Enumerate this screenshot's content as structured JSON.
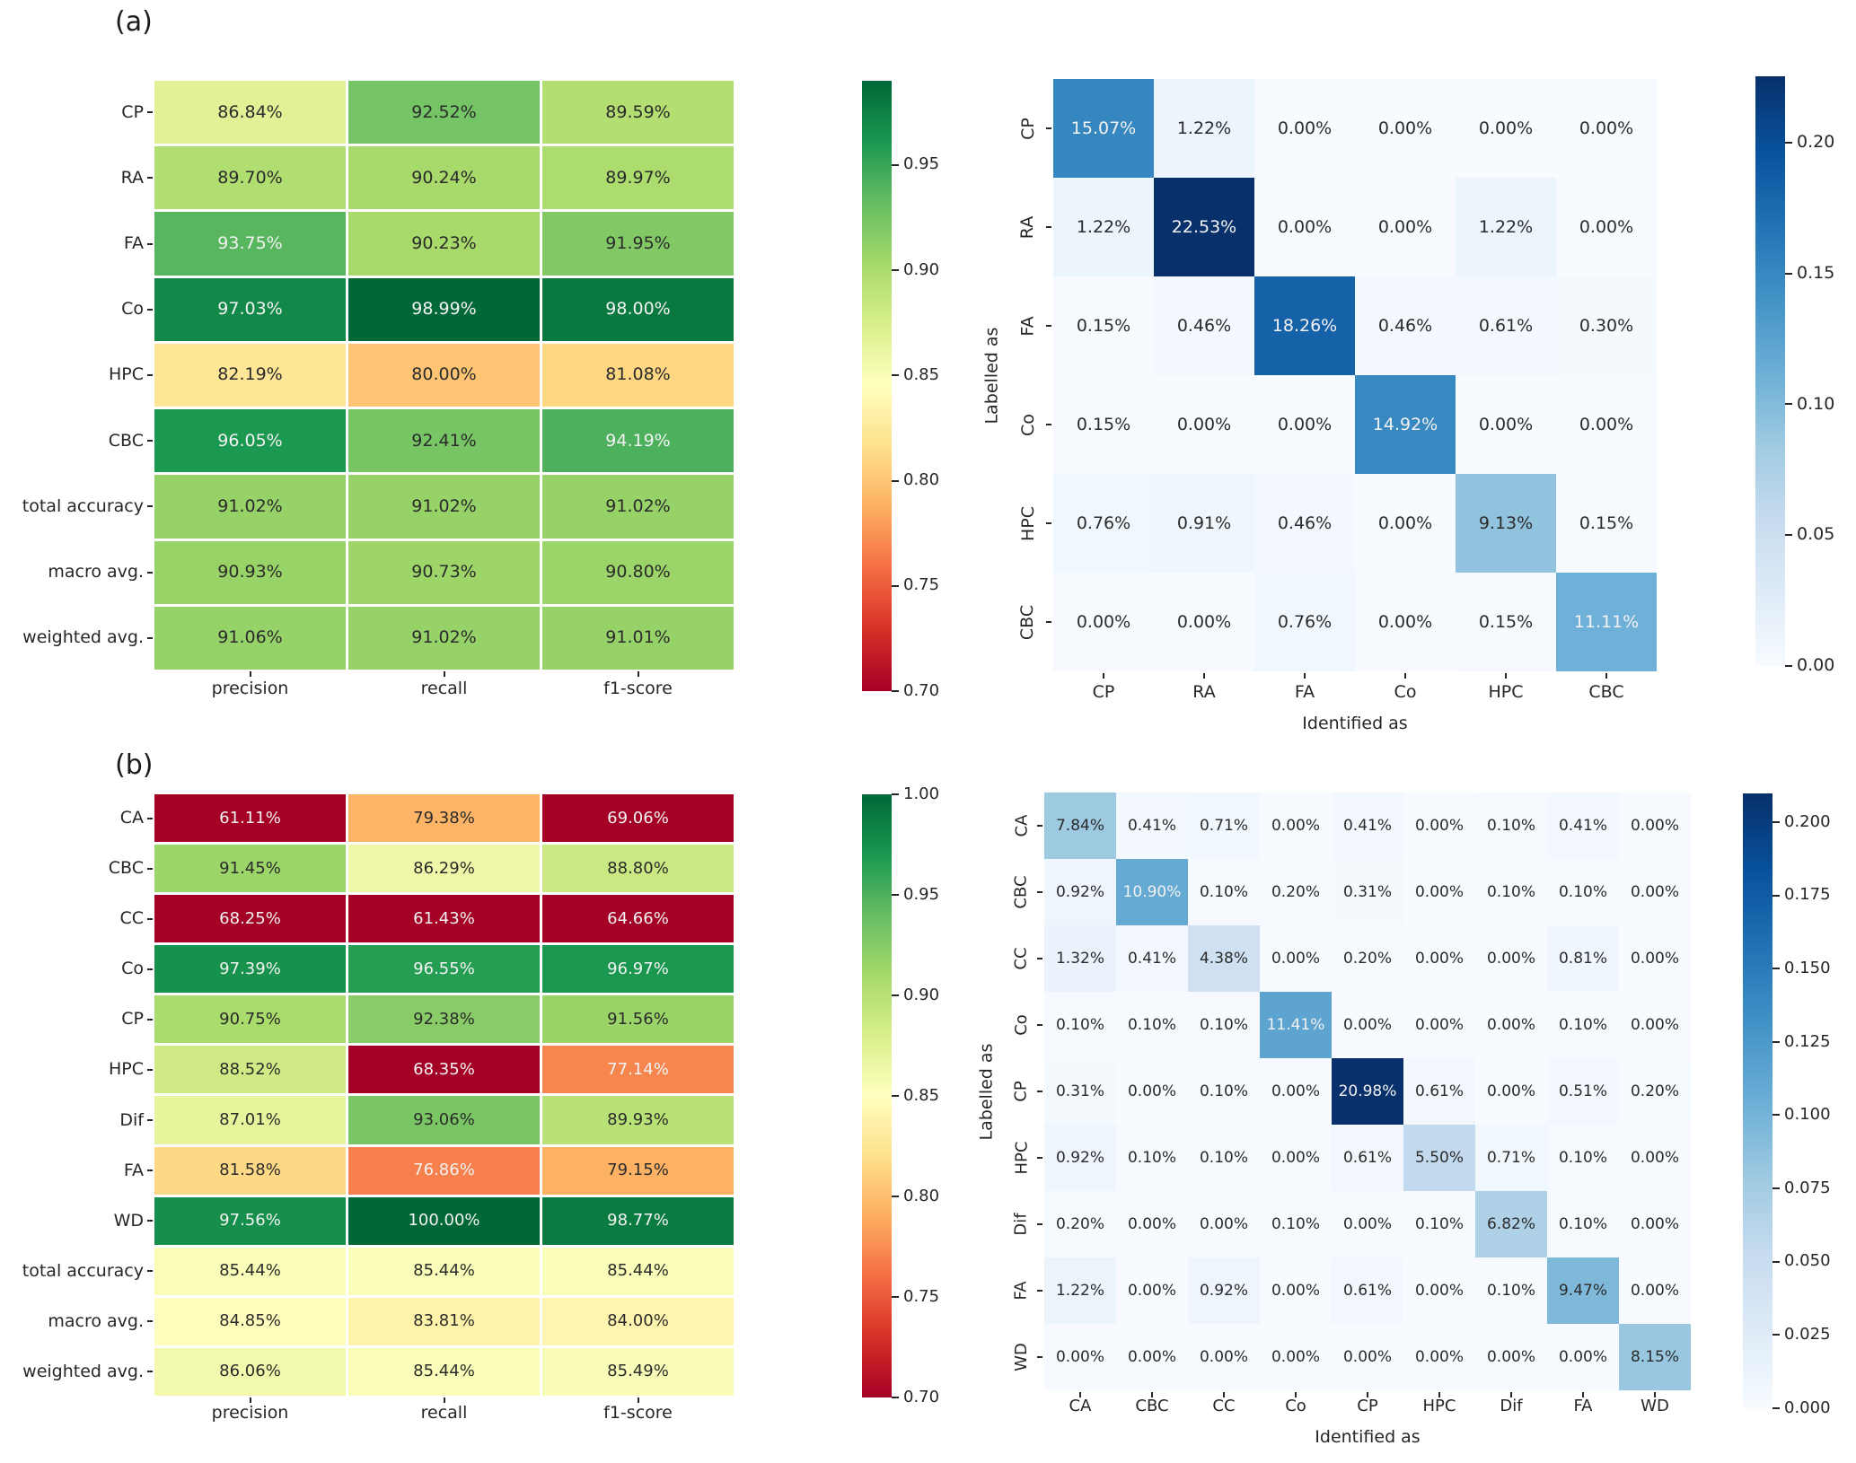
{
  "figure": {
    "background": "#ffffff",
    "annotation_dark_text": "#2b2b2b",
    "annotation_light_text": "#f2f2f2"
  },
  "chart_data": [
    {
      "type": "heatmap",
      "name": "classification-report-a",
      "section_label": "(a)",
      "rows": [
        "CP",
        "RA",
        "FA",
        "Co",
        "HPC",
        "CBC",
        "total accuracy",
        "macro avg.",
        "weighted avg."
      ],
      "columns": [
        "precision",
        "recall",
        "f1-score"
      ],
      "values_percent": [
        [
          86.84,
          92.52,
          89.59
        ],
        [
          89.7,
          90.24,
          89.97
        ],
        [
          93.75,
          90.23,
          91.95
        ],
        [
          97.03,
          98.99,
          98.0
        ],
        [
          82.19,
          80.0,
          81.08
        ],
        [
          96.05,
          92.41,
          94.19
        ],
        [
          91.02,
          91.02,
          91.02
        ],
        [
          90.93,
          90.73,
          90.8
        ],
        [
          91.06,
          91.02,
          91.01
        ]
      ],
      "colormap": "RdYlGn",
      "vmin": 0.7,
      "vmax": 0.99,
      "colorbar_ticks": [
        "0.95",
        "0.90",
        "0.85",
        "0.80",
        "0.75",
        "0.70"
      ],
      "xlabel": "",
      "ylabel": ""
    },
    {
      "type": "heatmap",
      "name": "confusion-matrix-a",
      "rows": [
        "CP",
        "RA",
        "FA",
        "Co",
        "HPC",
        "CBC"
      ],
      "columns": [
        "CP",
        "RA",
        "FA",
        "Co",
        "HPC",
        "CBC"
      ],
      "values_percent": [
        [
          15.07,
          1.22,
          0.0,
          0.0,
          0.0,
          0.0
        ],
        [
          1.22,
          22.53,
          0.0,
          0.0,
          1.22,
          0.0
        ],
        [
          0.15,
          0.46,
          18.26,
          0.46,
          0.61,
          0.3
        ],
        [
          0.15,
          0.0,
          0.0,
          14.92,
          0.0,
          0.0
        ],
        [
          0.76,
          0.91,
          0.46,
          0.0,
          9.13,
          0.15
        ],
        [
          0.0,
          0.0,
          0.76,
          0.0,
          0.15,
          11.11
        ]
      ],
      "colormap": "Blues",
      "vmin": 0.0,
      "vmax": 0.2253,
      "colorbar_ticks": [
        "0.20",
        "0.15",
        "0.10",
        "0.05",
        "0.00"
      ],
      "xlabel": "Identified as",
      "ylabel": "Labelled as"
    },
    {
      "type": "heatmap",
      "name": "classification-report-b",
      "section_label": "(b)",
      "rows": [
        "CA",
        "CBC",
        "CC",
        "Co",
        "CP",
        "HPC",
        "Dif",
        "FA",
        "WD",
        "total accuracy",
        "macro avg.",
        "weighted avg."
      ],
      "columns": [
        "precision",
        "recall",
        "f1-score"
      ],
      "values_percent": [
        [
          61.11,
          79.38,
          69.06
        ],
        [
          91.45,
          86.29,
          88.8
        ],
        [
          68.25,
          61.43,
          64.66
        ],
        [
          97.39,
          96.55,
          96.97
        ],
        [
          90.75,
          92.38,
          91.56
        ],
        [
          88.52,
          68.35,
          77.14
        ],
        [
          87.01,
          93.06,
          89.93
        ],
        [
          81.58,
          76.86,
          79.15
        ],
        [
          97.56,
          100.0,
          98.77
        ],
        [
          85.44,
          85.44,
          85.44
        ],
        [
          84.85,
          83.81,
          84.0
        ],
        [
          86.06,
          85.44,
          85.49
        ]
      ],
      "colormap": "RdYlGn",
      "vmin": 0.7,
      "vmax": 1.0,
      "colorbar_ticks": [
        "1.00",
        "0.95",
        "0.90",
        "0.85",
        "0.80",
        "0.75",
        "0.70"
      ],
      "xlabel": "",
      "ylabel": ""
    },
    {
      "type": "heatmap",
      "name": "confusion-matrix-b",
      "rows": [
        "CA",
        "CBC",
        "CC",
        "Co",
        "CP",
        "HPC",
        "Dif",
        "FA",
        "WD"
      ],
      "columns": [
        "CA",
        "CBC",
        "CC",
        "Co",
        "CP",
        "HPC",
        "Dif",
        "FA",
        "WD"
      ],
      "values_percent": [
        [
          7.84,
          0.41,
          0.71,
          0.0,
          0.41,
          0.0,
          0.1,
          0.41,
          0.0
        ],
        [
          0.92,
          10.9,
          0.1,
          0.2,
          0.31,
          0.0,
          0.1,
          0.1,
          0.0
        ],
        [
          1.32,
          0.41,
          4.38,
          0.0,
          0.2,
          0.0,
          0.0,
          0.81,
          0.0
        ],
        [
          0.1,
          0.1,
          0.1,
          11.41,
          0.0,
          0.0,
          0.0,
          0.1,
          0.0
        ],
        [
          0.31,
          0.0,
          0.1,
          0.0,
          20.98,
          0.61,
          0.0,
          0.51,
          0.2
        ],
        [
          0.92,
          0.1,
          0.1,
          0.0,
          0.61,
          5.5,
          0.71,
          0.1,
          0.0
        ],
        [
          0.2,
          0.0,
          0.0,
          0.1,
          0.0,
          0.1,
          6.82,
          0.1,
          0.0
        ],
        [
          1.22,
          0.0,
          0.92,
          0.0,
          0.61,
          0.0,
          0.1,
          9.47,
          0.0
        ],
        [
          0.0,
          0.0,
          0.0,
          0.0,
          0.0,
          0.0,
          0.0,
          0.0,
          8.15
        ]
      ],
      "colormap": "Blues",
      "vmin": 0.0,
      "vmax": 0.2098,
      "colorbar_ticks": [
        "0.200",
        "0.175",
        "0.150",
        "0.125",
        "0.100",
        "0.075",
        "0.050",
        "0.025",
        "0.000"
      ],
      "xlabel": "Identified as",
      "ylabel": "Labelled as"
    }
  ]
}
